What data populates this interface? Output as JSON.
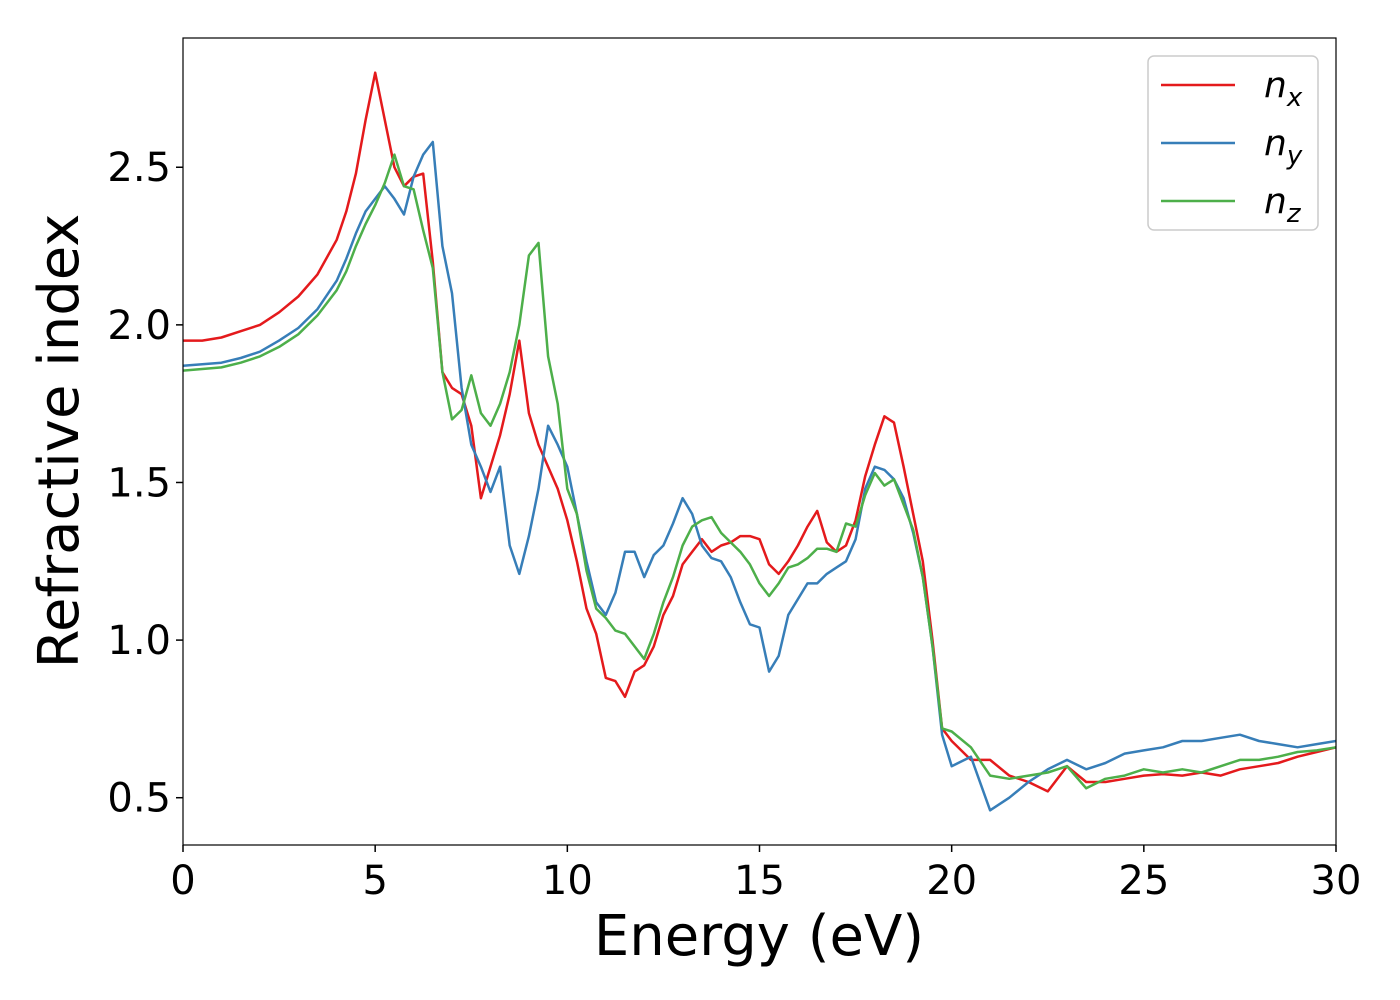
{
  "chart_data": {
    "type": "line",
    "xlabel": "Energy (eV)",
    "ylabel": "Refractive index",
    "x": [
      0,
      0.5,
      1,
      1.5,
      2,
      2.5,
      3,
      3.5,
      4,
      4.25,
      4.5,
      4.75,
      5,
      5.25,
      5.5,
      5.75,
      6,
      6.25,
      6.5,
      6.75,
      7,
      7.25,
      7.5,
      7.75,
      8,
      8.25,
      8.5,
      8.75,
      9,
      9.25,
      9.5,
      9.75,
      10,
      10.25,
      10.5,
      10.75,
      11,
      11.25,
      11.5,
      11.75,
      12,
      12.25,
      12.5,
      12.75,
      13,
      13.25,
      13.5,
      13.75,
      14,
      14.25,
      14.5,
      14.75,
      15,
      15.25,
      15.5,
      15.75,
      16,
      16.25,
      16.5,
      16.75,
      17,
      17.25,
      17.5,
      17.75,
      18,
      18.25,
      18.5,
      18.75,
      19,
      19.25,
      19.5,
      19.75,
      20,
      20.5,
      21,
      21.5,
      22,
      22.5,
      23,
      23.5,
      24,
      24.5,
      25,
      25.5,
      26,
      26.5,
      27,
      27.5,
      28,
      28.5,
      29,
      29.5,
      30
    ],
    "series": [
      {
        "name": "nx",
        "color": "#e41a1c",
        "values": [
          1.95,
          1.95,
          1.96,
          1.98,
          2.0,
          2.04,
          2.09,
          2.16,
          2.27,
          2.36,
          2.48,
          2.65,
          2.8,
          2.65,
          2.5,
          2.44,
          2.47,
          2.48,
          2.2,
          1.85,
          1.8,
          1.78,
          1.68,
          1.45,
          1.55,
          1.65,
          1.78,
          1.95,
          1.72,
          1.62,
          1.55,
          1.48,
          1.38,
          1.25,
          1.1,
          1.02,
          0.88,
          0.87,
          0.82,
          0.9,
          0.92,
          0.98,
          1.08,
          1.14,
          1.24,
          1.28,
          1.32,
          1.28,
          1.3,
          1.31,
          1.33,
          1.33,
          1.32,
          1.24,
          1.21,
          1.25,
          1.3,
          1.36,
          1.41,
          1.31,
          1.28,
          1.3,
          1.38,
          1.52,
          1.62,
          1.71,
          1.69,
          1.55,
          1.4,
          1.25,
          1.0,
          0.72,
          0.68,
          0.62,
          0.62,
          0.57,
          0.55,
          0.52,
          0.6,
          0.55,
          0.55,
          0.56,
          0.57,
          0.575,
          0.57,
          0.58,
          0.57,
          0.59,
          0.6,
          0.61,
          0.63,
          0.645,
          0.66
        ]
      },
      {
        "name": "ny",
        "color": "#377eb8",
        "values": [
          1.87,
          1.875,
          1.88,
          1.895,
          1.915,
          1.95,
          1.99,
          2.05,
          2.14,
          2.21,
          2.29,
          2.36,
          2.4,
          2.44,
          2.4,
          2.35,
          2.47,
          2.54,
          2.58,
          2.25,
          2.1,
          1.8,
          1.62,
          1.55,
          1.47,
          1.55,
          1.3,
          1.21,
          1.33,
          1.48,
          1.68,
          1.62,
          1.55,
          1.4,
          1.25,
          1.12,
          1.08,
          1.15,
          1.28,
          1.28,
          1.2,
          1.27,
          1.3,
          1.37,
          1.45,
          1.4,
          1.3,
          1.26,
          1.25,
          1.2,
          1.12,
          1.05,
          1.04,
          0.9,
          0.95,
          1.08,
          1.13,
          1.18,
          1.18,
          1.21,
          1.23,
          1.25,
          1.32,
          1.48,
          1.55,
          1.54,
          1.51,
          1.45,
          1.34,
          1.2,
          0.98,
          0.7,
          0.6,
          0.63,
          0.46,
          0.5,
          0.55,
          0.59,
          0.62,
          0.59,
          0.61,
          0.64,
          0.65,
          0.66,
          0.68,
          0.68,
          0.69,
          0.7,
          0.68,
          0.67,
          0.66,
          0.67,
          0.68
        ]
      },
      {
        "name": "nz",
        "color": "#4daf4a",
        "values": [
          1.855,
          1.86,
          1.865,
          1.88,
          1.9,
          1.93,
          1.97,
          2.03,
          2.11,
          2.17,
          2.25,
          2.32,
          2.38,
          2.45,
          2.54,
          2.44,
          2.43,
          2.3,
          2.18,
          1.85,
          1.7,
          1.73,
          1.84,
          1.72,
          1.68,
          1.75,
          1.85,
          2.0,
          2.22,
          2.26,
          1.9,
          1.75,
          1.48,
          1.4,
          1.22,
          1.1,
          1.07,
          1.03,
          1.02,
          0.98,
          0.94,
          1.02,
          1.12,
          1.2,
          1.3,
          1.36,
          1.38,
          1.39,
          1.34,
          1.31,
          1.28,
          1.24,
          1.18,
          1.14,
          1.18,
          1.23,
          1.24,
          1.26,
          1.29,
          1.29,
          1.28,
          1.37,
          1.36,
          1.46,
          1.53,
          1.49,
          1.51,
          1.43,
          1.35,
          1.2,
          0.98,
          0.72,
          0.71,
          0.66,
          0.57,
          0.56,
          0.57,
          0.58,
          0.6,
          0.53,
          0.56,
          0.57,
          0.59,
          0.58,
          0.59,
          0.58,
          0.6,
          0.62,
          0.62,
          0.63,
          0.645,
          0.65,
          0.66
        ]
      }
    ],
    "xlim": [
      0,
      30
    ],
    "ylim": [
      0.35,
      2.91
    ],
    "xticks": [
      0,
      5,
      10,
      15,
      20,
      25,
      30
    ],
    "yticks": [
      0.5,
      {
        "value": 1.0,
        "label": "1.0"
      },
      1.5,
      {
        "value": 2.0,
        "label": "2.0"
      },
      2.5
    ],
    "grid": false,
    "legend": "upper right"
  }
}
